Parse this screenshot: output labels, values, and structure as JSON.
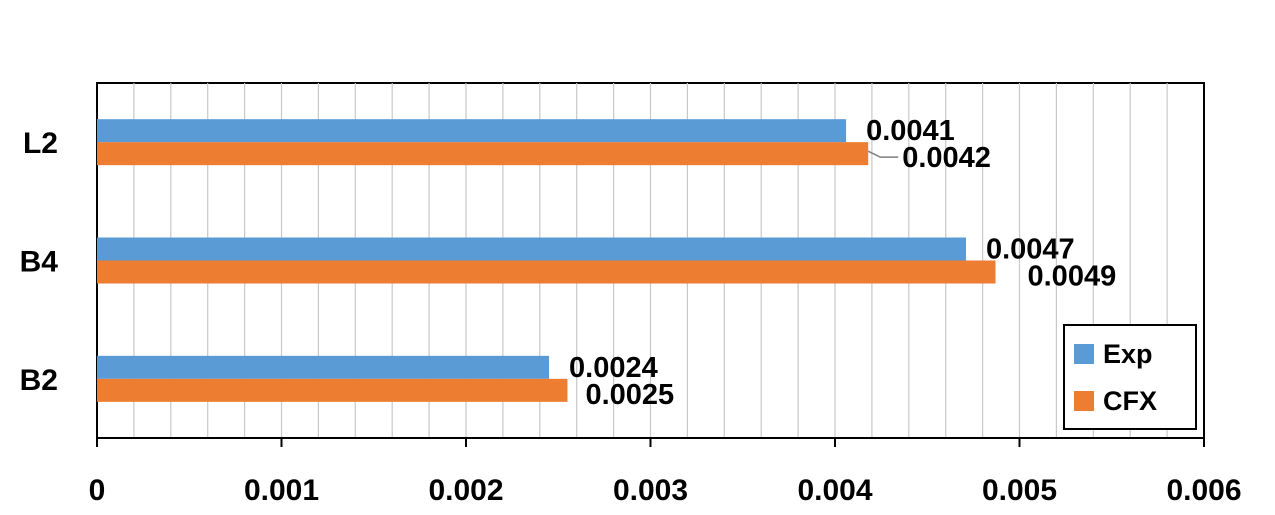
{
  "chart_data": {
    "type": "bar",
    "orientation": "horizontal",
    "title": "",
    "xlabel": "",
    "ylabel": "",
    "categories": [
      "L2",
      "B4",
      "B2"
    ],
    "series": [
      {
        "name": "Exp",
        "color": "#5b9bd5",
        "values": [
          0.00406,
          0.00471,
          0.00245
        ],
        "labels": [
          "0.0041",
          "0.0047",
          "0.0024"
        ]
      },
      {
        "name": "CFX",
        "color": "#ed7d31",
        "values": [
          0.00418,
          0.00487,
          0.00255
        ],
        "labels": [
          "0.0042",
          "0.0049",
          "0.0025"
        ]
      }
    ],
    "xlim": [
      0,
      0.006
    ],
    "x_ticks": [
      0,
      0.001,
      0.002,
      0.003,
      0.004,
      0.005,
      0.006
    ],
    "x_tick_labels": [
      "0",
      "0.001",
      "0.002",
      "0.003",
      "0.004",
      "0.005",
      "0.006"
    ],
    "grid": "vertical",
    "legend_position": "bottom-right"
  }
}
